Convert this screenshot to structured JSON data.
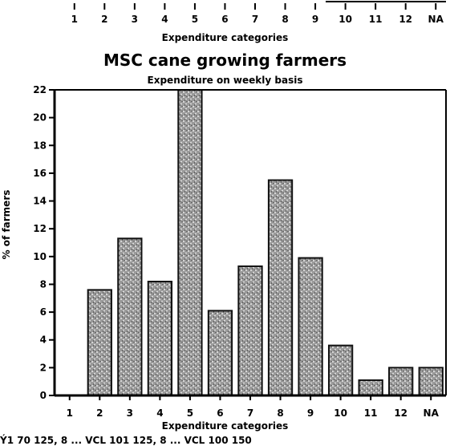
{
  "header_fragment": {
    "categories": [
      "1",
      "2",
      "3",
      "4",
      "5",
      "6",
      "7",
      "8",
      "9",
      "10",
      "11",
      "12",
      "NA"
    ],
    "xlabel": "Expenditure categories"
  },
  "footer_fragment": {
    "text": "Ý1 70 125, 8 ... VCL 101 125, 8 ... VCL 100 150"
  },
  "chart_data": {
    "type": "bar",
    "title": "MSC cane growing farmers",
    "subtitle": "Expenditure on weekly basis",
    "xlabel": "Expenditure categories",
    "ylabel": "% of farmers",
    "categories": [
      "1",
      "2",
      "3",
      "4",
      "5",
      "6",
      "7",
      "8",
      "9",
      "10",
      "11",
      "12",
      "NA"
    ],
    "values": [
      0,
      7.6,
      11.3,
      8.2,
      22,
      6.1,
      9.3,
      15.5,
      9.9,
      3.6,
      1.1,
      2.0,
      2.0
    ],
    "ylim": [
      0,
      22
    ],
    "yticks": [
      0,
      2,
      4,
      6,
      8,
      10,
      12,
      14,
      16,
      18,
      20,
      22
    ],
    "grid": false,
    "colors": {
      "bar_fill": "#8a8a8a",
      "bar_stroke": "#111111",
      "axis": "#000000"
    }
  }
}
